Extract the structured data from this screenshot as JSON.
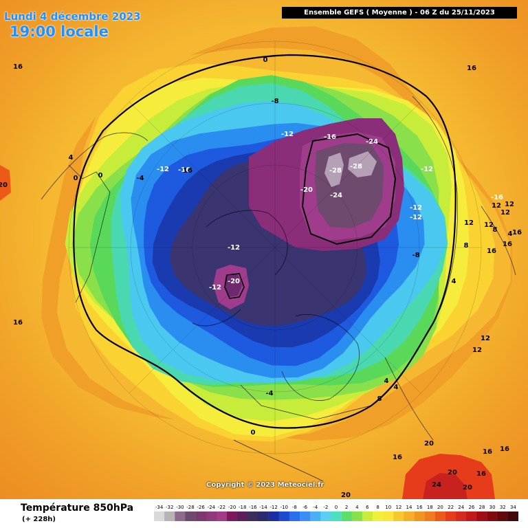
{
  "header": {
    "date_title": "Lundi 4 décembre 2023",
    "local_time": "19:00 locale",
    "model_run": "Ensemble GEFS  ( Moyenne )  -  06 Z du 25/11/2023"
  },
  "copyright": "Copyright © 2023 Meteociel.fr",
  "footer": {
    "variable": "Température 850hPa",
    "lead_time": "(+ 228h)"
  },
  "legend": {
    "values": [
      "-34",
      "-32",
      "-30",
      "-28",
      "-26",
      "-24",
      "-22",
      "-20",
      "-18",
      "-16",
      "-14",
      "-12",
      "-10",
      "-8",
      "-6",
      "-4",
      "-2",
      "0",
      "2",
      "4",
      "6",
      "8",
      "10",
      "12",
      "14",
      "16",
      "18",
      "20",
      "22",
      "24",
      "26",
      "28",
      "30",
      "32",
      "34"
    ],
    "colors": [
      "#d9d9d9",
      "#b5b5b5",
      "#8c6b8c",
      "#6e4a6e",
      "#7a3a6e",
      "#8e3a7a",
      "#a03c86",
      "#7a1a5a",
      "#5a1e5a",
      "#3a2e5a",
      "#2a2a6e",
      "#1a2ea0",
      "#1e4ad0",
      "#2a6ef0",
      "#3a8ef5",
      "#4ab0f5",
      "#5ad0f0",
      "#4ae0c0",
      "#5ae06a",
      "#8ae04a",
      "#c8ec3a",
      "#f0f03a",
      "#fae63a",
      "#f5c830",
      "#f5ae28",
      "#f09620",
      "#f07c1e",
      "#ec5a1a",
      "#e63c1c",
      "#d62a20",
      "#c01a1a",
      "#a00e14",
      "#800a10",
      "#600a0c",
      "#400808"
    ]
  },
  "map": {
    "field": [
      {
        "level": "16",
        "color": "#f0a028"
      },
      {
        "level": "14",
        "color": "#f5b830"
      },
      {
        "level": "12",
        "color": "#fad232"
      },
      {
        "level": "10",
        "color": "#f5ec3c"
      },
      {
        "level": "8",
        "color": "#c8ec3a"
      },
      {
        "level": "6",
        "color": "#8ae04a"
      },
      {
        "level": "4",
        "color": "#5ad85a"
      },
      {
        "level": "2",
        "color": "#4ad8b0"
      },
      {
        "level": "0",
        "color": "#4ac8f0"
      },
      {
        "level": "-4",
        "color": "#2a8ef0"
      },
      {
        "level": "-8",
        "color": "#1e5ae0"
      },
      {
        "level": "-12",
        "color": "#1a3ab0"
      },
      {
        "level": "-16",
        "color": "#3a3470"
      },
      {
        "level": "-20",
        "color": "#7a1e6e"
      },
      {
        "level": "-24",
        "color": "#a03c8c"
      },
      {
        "level": "-28",
        "color": "#6e4a6e"
      }
    ],
    "contour_labels": [
      {
        "text": "16"
      },
      {
        "text": "16"
      },
      {
        "text": "0"
      },
      {
        "text": "-8"
      },
      {
        "text": "-12"
      },
      {
        "text": "-16"
      },
      {
        "text": "-24"
      },
      {
        "text": "-12"
      },
      {
        "text": "-28"
      },
      {
        "text": "-28"
      },
      {
        "text": "-20"
      },
      {
        "text": "-24"
      },
      {
        "text": "-12"
      },
      {
        "text": "-16"
      },
      {
        "text": "-4"
      },
      {
        "text": "4"
      },
      {
        "text": "0"
      },
      {
        "text": "0"
      },
      {
        "text": "-12"
      },
      {
        "text": "-12"
      },
      {
        "text": "-12"
      },
      {
        "text": "-8"
      },
      {
        "text": "-12"
      },
      {
        "text": "-20"
      },
      {
        "text": "-16"
      },
      {
        "text": "12"
      },
      {
        "text": "12"
      },
      {
        "text": "12"
      },
      {
        "text": "12"
      },
      {
        "text": "8"
      },
      {
        "text": "12"
      },
      {
        "text": "8"
      },
      {
        "text": "4"
      },
      {
        "text": "16"
      },
      {
        "text": "16"
      },
      {
        "text": "16"
      },
      {
        "text": "4"
      },
      {
        "text": "12"
      },
      {
        "text": "12"
      },
      {
        "text": "16"
      },
      {
        "text": "4"
      },
      {
        "text": "4"
      },
      {
        "text": "8"
      },
      {
        "text": "-4"
      },
      {
        "text": "0"
      },
      {
        "text": "16"
      },
      {
        "text": "20"
      },
      {
        "text": "16"
      },
      {
        "text": "20"
      },
      {
        "text": "16"
      },
      {
        "text": "24"
      },
      {
        "text": "20"
      },
      {
        "text": "20"
      },
      {
        "text": "16"
      },
      {
        "text": "20"
      },
      {
        "text": "16"
      }
    ]
  }
}
